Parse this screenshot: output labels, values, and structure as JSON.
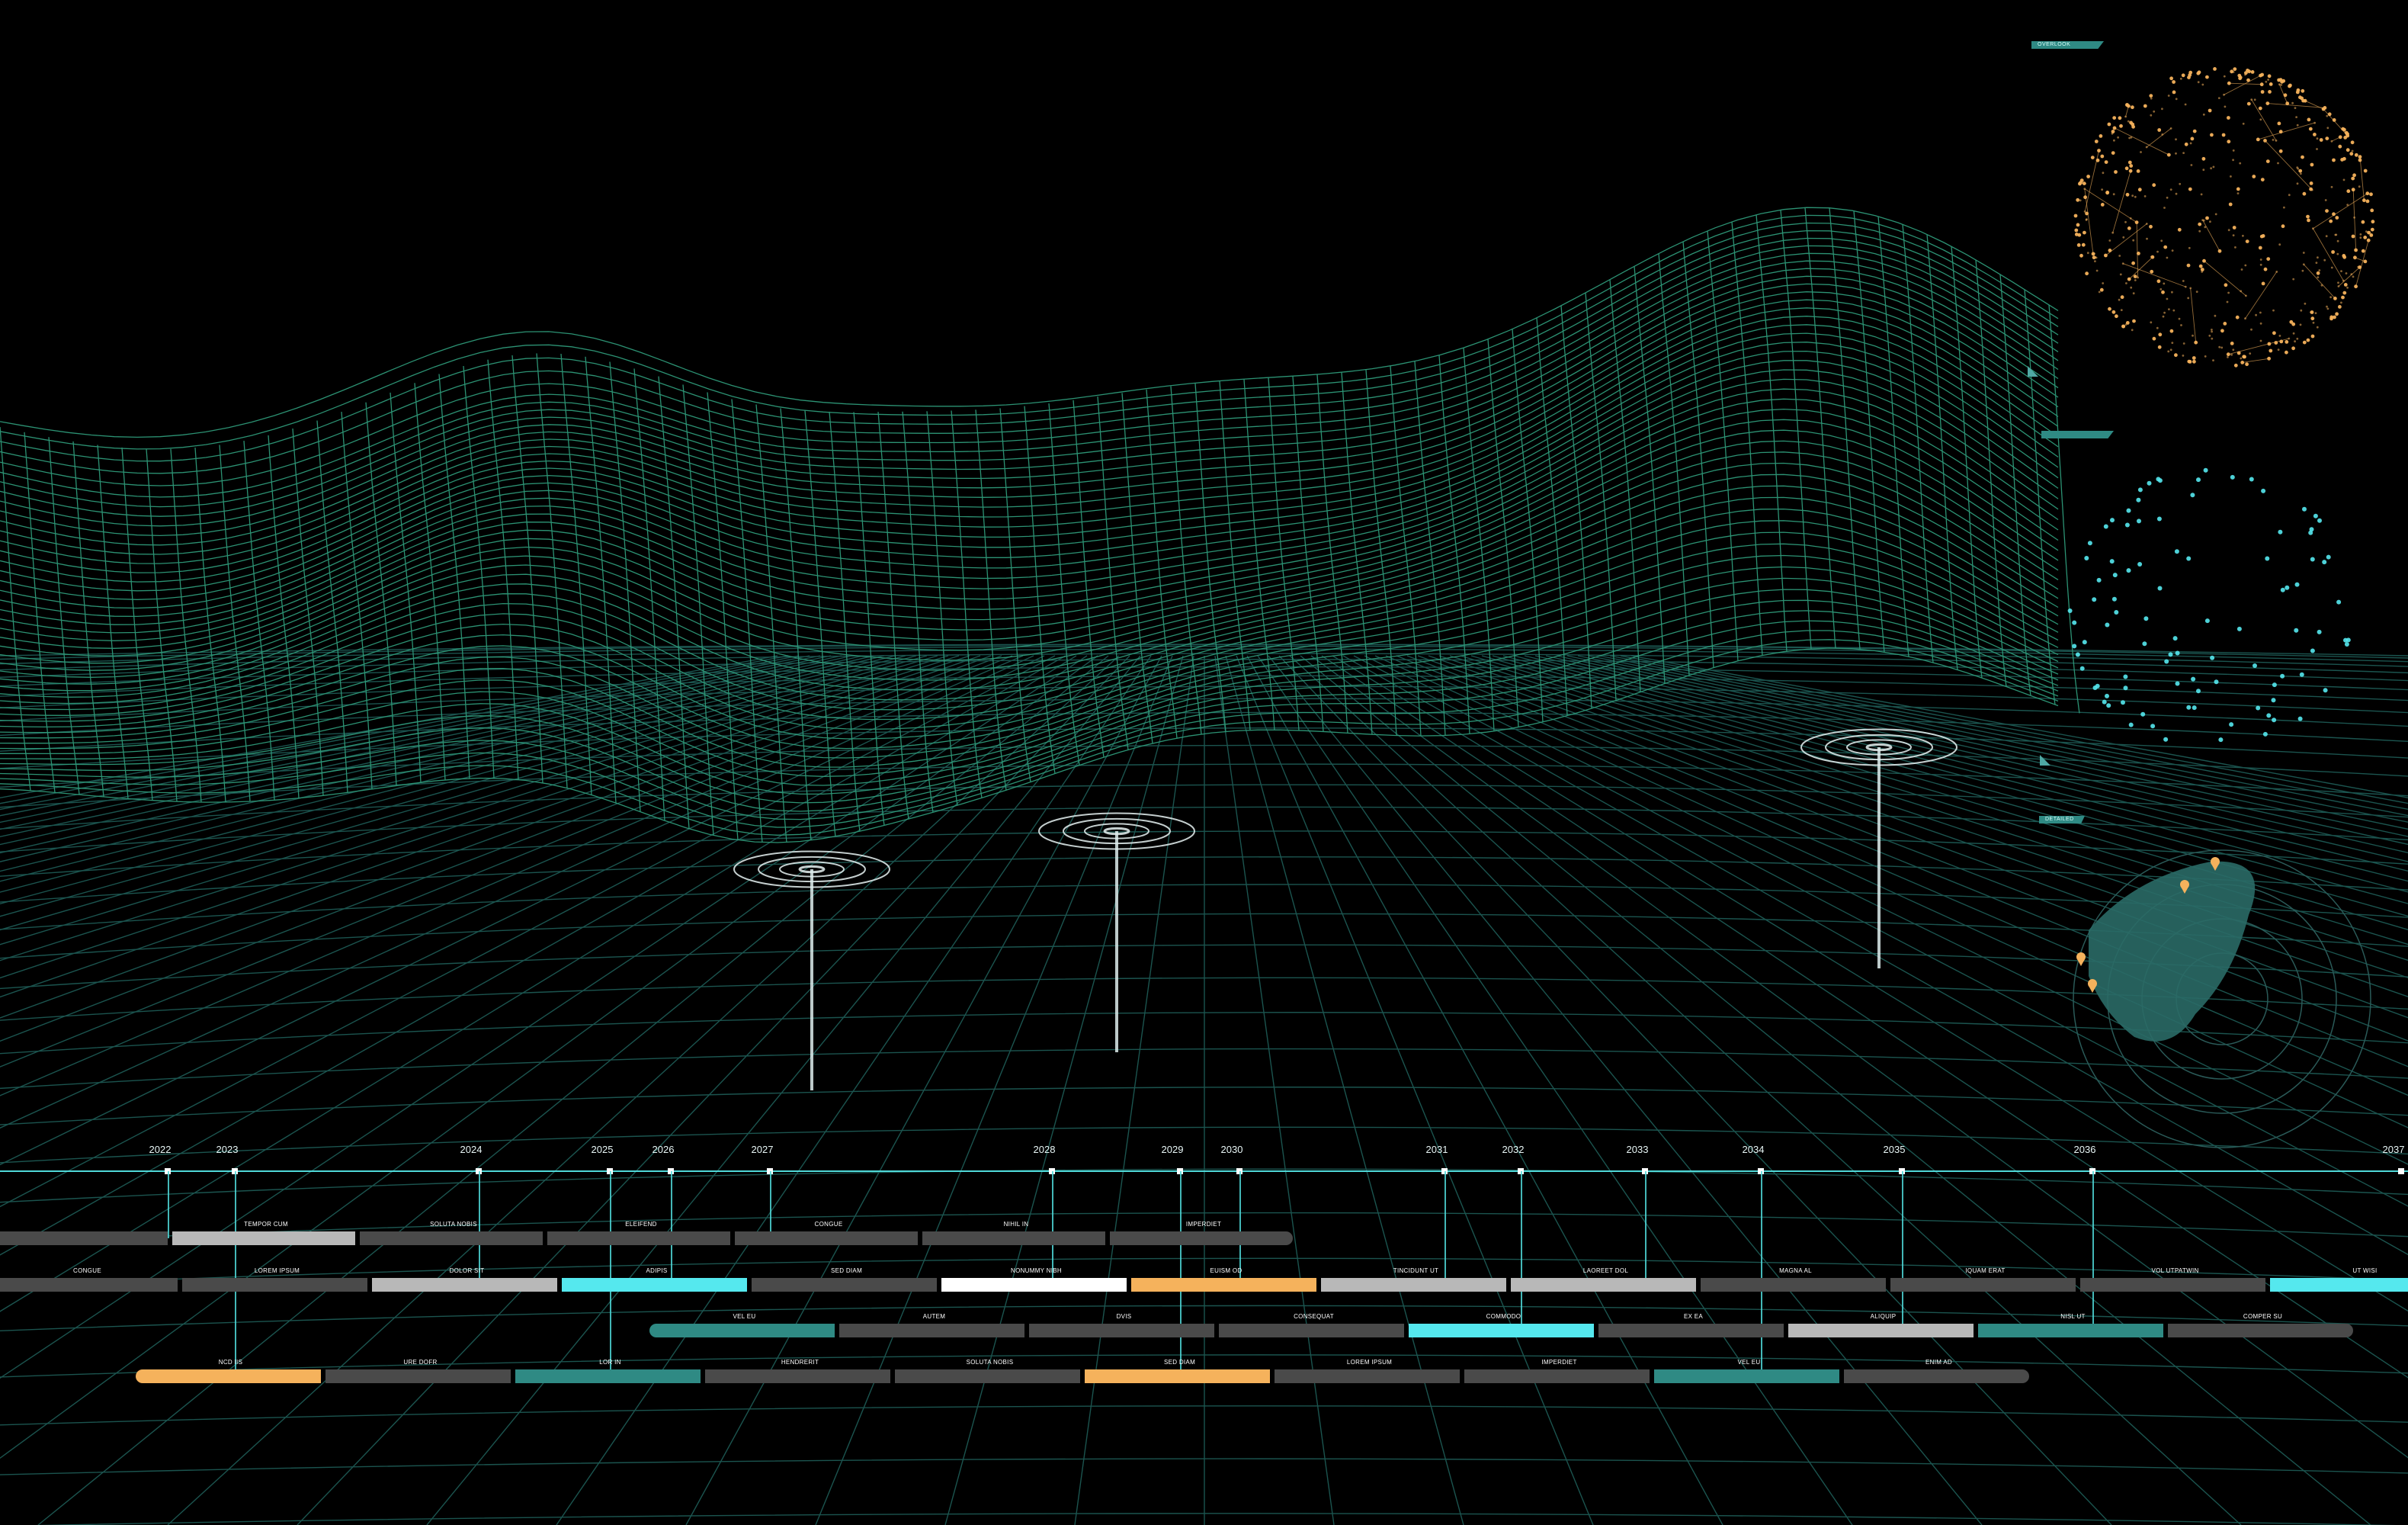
{
  "colors": {
    "terrain": "#2f9a7a",
    "floor": "#1f5e58",
    "accent_cyan": "#55e8ee",
    "accent_orange": "#f5b25c",
    "accent_teal": "#2f8a84",
    "bar_gray": "#4a4a4a",
    "bar_light": "#b8b8b8",
    "bar_white": "#ffffff"
  },
  "panels": {
    "globe_tab": "OVERLOOK",
    "points_tab": "",
    "radar_tab": "DETAILED"
  },
  "timeline": {
    "years": [
      {
        "label": "2022"
      },
      {
        "label": "2023"
      },
      {
        "label": "2024"
      },
      {
        "label": "2025"
      },
      {
        "label": "2026"
      },
      {
        "label": "2027"
      },
      {
        "label": "2028"
      },
      {
        "label": "2029"
      },
      {
        "label": "2030"
      },
      {
        "label": "2031"
      },
      {
        "label": "2032"
      },
      {
        "label": "2033"
      },
      {
        "label": "2034"
      },
      {
        "label": "2035"
      },
      {
        "label": "2036"
      },
      {
        "label": "2037"
      }
    ],
    "rows": [
      {
        "name": "row-1",
        "bars": [
          {
            "label": "",
            "color": "gray"
          },
          {
            "label": "TEMPOR CUM",
            "color": "light"
          },
          {
            "label": "SOLUTA NOBIS",
            "color": "gray"
          },
          {
            "label": "ELEIFEND",
            "color": "gray"
          },
          {
            "label": "CONGUE",
            "color": "gray"
          },
          {
            "label": "NIHIL IN",
            "color": "gray"
          },
          {
            "label": "IMPERDIET",
            "color": "gray"
          }
        ]
      },
      {
        "name": "row-2",
        "bars": [
          {
            "label": "CONGUE",
            "color": "gray"
          },
          {
            "label": "LOREM IPSUM",
            "color": "gray"
          },
          {
            "label": "DOLOR SIT",
            "color": "light"
          },
          {
            "label": "ADIPIS",
            "color": "cyan"
          },
          {
            "label": "SED DIAM",
            "color": "gray"
          },
          {
            "label": "NONUMMY NIBH",
            "color": "white"
          },
          {
            "label": "EUISM OD",
            "color": "orange"
          },
          {
            "label": "TINCIDUNT UT",
            "color": "light"
          },
          {
            "label": "LAOREET DOL",
            "color": "light"
          },
          {
            "label": "MAGNA AL",
            "color": "gray"
          },
          {
            "label": "IQUAM ERAT",
            "color": "gray"
          },
          {
            "label": "VOL UTPATWIN",
            "color": "gray"
          },
          {
            "label": "UT WISI",
            "color": "cyan"
          }
        ]
      },
      {
        "name": "row-3",
        "bars": [
          {
            "label": "VEL EU",
            "color": "teal"
          },
          {
            "label": "AUTEM",
            "color": "gray"
          },
          {
            "label": "DVIS",
            "color": "gray"
          },
          {
            "label": "CONSEQUAT",
            "color": "gray"
          },
          {
            "label": "COMMODO",
            "color": "cyan"
          },
          {
            "label": "EX EA",
            "color": "gray"
          },
          {
            "label": "ALIQUIP",
            "color": "light"
          },
          {
            "label": "NISL UT",
            "color": "teal"
          },
          {
            "label": "COMPER SU",
            "color": "gray"
          }
        ]
      },
      {
        "name": "row-4",
        "bars": [
          {
            "label": "NCD IIS",
            "color": "orange"
          },
          {
            "label": "URE DOFR",
            "color": "gray"
          },
          {
            "label": "LOR IN",
            "color": "teal"
          },
          {
            "label": "HENDRERIT",
            "color": "gray"
          },
          {
            "label": "SOLUTA NOBIS",
            "color": "gray"
          },
          {
            "label": "SED DIAM",
            "color": "orange"
          },
          {
            "label": "LOREM IPSUM",
            "color": "gray"
          },
          {
            "label": "IMPERDIET",
            "color": "gray"
          },
          {
            "label": "VEL EU",
            "color": "teal"
          },
          {
            "label": "ENIM AD",
            "color": "gray"
          }
        ]
      }
    ]
  }
}
